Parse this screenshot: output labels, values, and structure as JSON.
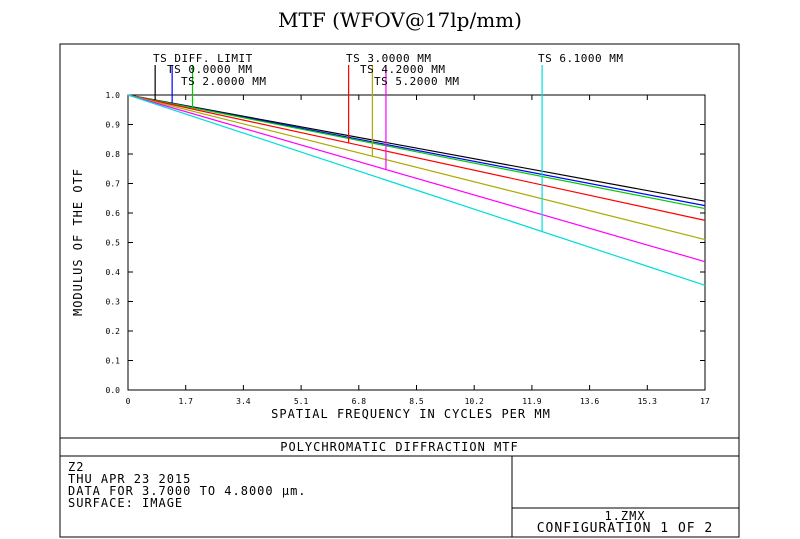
{
  "title": "MTF (WFOV@17lp/mm)",
  "footer": {
    "title": "POLYCHROMATIC DIFFRACTION MTF",
    "lines": [
      "Z2",
      "THU APR 23 2015",
      "DATA FOR 3.7000 TO 4.8000 μm.",
      "SURFACE: IMAGE"
    ],
    "file": "1.ZMX",
    "config": "CONFIGURATION 1 OF 2"
  },
  "chart_data": {
    "type": "line",
    "xlabel": "SPATIAL FREQUENCY IN CYCLES PER MM",
    "ylabel": "MODULUS OF THE OTF",
    "xlim": [
      0,
      17
    ],
    "ylim": [
      0,
      1
    ],
    "xticks": [
      "0",
      "1.7",
      "3.4",
      "5.1",
      "6.8",
      "8.5",
      "10.2",
      "11.9",
      "13.6",
      "15.3",
      "17"
    ],
    "yticks": [
      "0.0",
      "0.1",
      "0.2",
      "0.3",
      "0.4",
      "0.5",
      "0.6",
      "0.7",
      "0.8",
      "0.9",
      "1.0"
    ],
    "grid": false,
    "x": [
      0,
      17
    ],
    "series": [
      {
        "name": "TS DIFF. LIMIT",
        "color": "#000000",
        "values": [
          1.0,
          0.64
        ],
        "marker_x": 0.8
      },
      {
        "name": "TS 0.0000 MM",
        "color": "#0000ff",
        "values": [
          1.0,
          0.625
        ],
        "marker_x": 1.3
      },
      {
        "name": "TS 2.0000 MM",
        "color": "#00cc00",
        "values": [
          1.0,
          0.615
        ],
        "marker_x": 1.9
      },
      {
        "name": "TS 3.0000 MM",
        "color": "#ff0000",
        "values": [
          1.0,
          0.575
        ],
        "marker_x": 6.5
      },
      {
        "name": "TS 4.2000 MM",
        "color": "#aaaa00",
        "values": [
          1.0,
          0.51
        ],
        "marker_x": 7.2
      },
      {
        "name": "TS 5.2000 MM",
        "color": "#ff00ff",
        "values": [
          1.0,
          0.435
        ],
        "marker_x": 7.6
      },
      {
        "name": "TS 6.1000 MM",
        "color": "#00dddd",
        "values": [
          1.0,
          0.355
        ],
        "marker_x": 12.2
      }
    ]
  }
}
